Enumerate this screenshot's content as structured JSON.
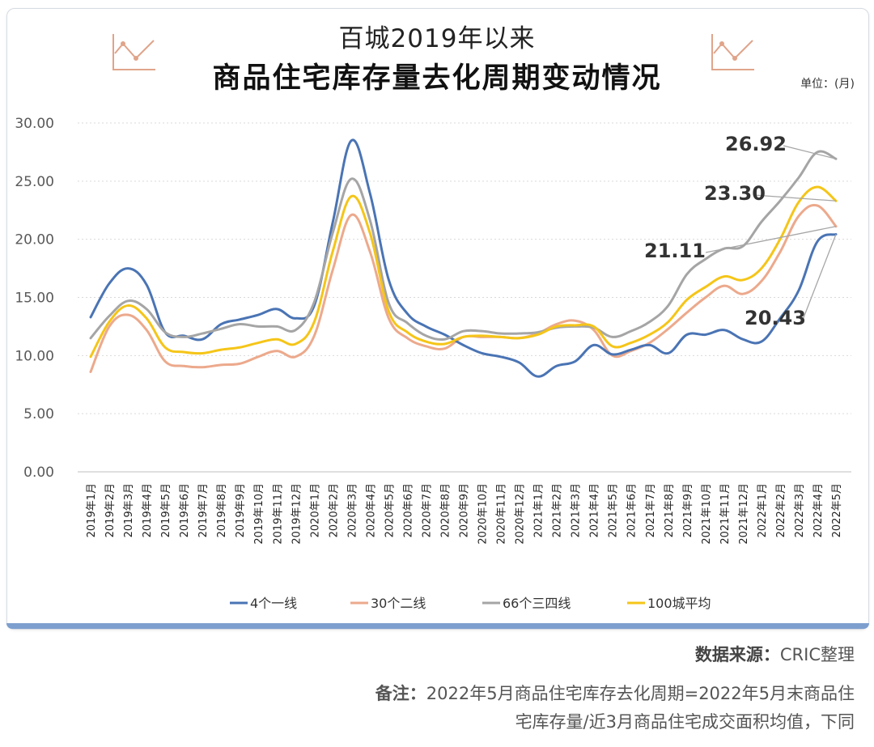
{
  "header": {
    "title_line1": "百城2019年以来",
    "title_line2": "商品住宅库存量去化周期变动情况",
    "unit": "单位：(月)"
  },
  "footer": {
    "source_label": "数据来源：",
    "source_text": "CRIC整理",
    "note_label": "备注：",
    "note_line1": "2022年5月商品住宅库存去化周期=2022年5月末商品住",
    "note_line2": "宅库存量/近3月商品住宅成交面积均值，下同"
  },
  "chart_data": {
    "type": "line",
    "title": "商品住宅库存量去化周期变动情况",
    "ylabel": "单位：(月)",
    "ylim": [
      0,
      30
    ],
    "yticks": [
      "0.00",
      "5.00",
      "10.00",
      "15.00",
      "20.00",
      "25.00",
      "30.00"
    ],
    "grid": true,
    "legend_position": "bottom",
    "categories": [
      "2019年1月",
      "2019年2月",
      "2019年3月",
      "2019年4月",
      "2019年5月",
      "2019年6月",
      "2019年7月",
      "2019年8月",
      "2019年9月",
      "2019年10月",
      "2019年11月",
      "2019年12月",
      "2020年1月",
      "2020年2月",
      "2020年3月",
      "2020年4月",
      "2020年5月",
      "2020年6月",
      "2020年7月",
      "2020年8月",
      "2020年9月",
      "2020年10月",
      "2020年11月",
      "2020年12月",
      "2021年1月",
      "2021年2月",
      "2021年3月",
      "2021年4月",
      "2021年5月",
      "2021年6月",
      "2021年7月",
      "2021年8月",
      "2021年9月",
      "2021年10月",
      "2021年11月",
      "2021年12月",
      "2022年1月",
      "2022年2月",
      "2022年3月",
      "2022年4月",
      "2022年5月"
    ],
    "series": [
      {
        "name": "4个一线",
        "color": "#4a74b4",
        "values": [
          13.3,
          16.2,
          17.5,
          16.1,
          12.0,
          11.7,
          11.4,
          12.7,
          13.1,
          13.5,
          14.0,
          13.2,
          14.3,
          21.5,
          28.5,
          23.9,
          16.5,
          13.6,
          12.5,
          11.8,
          10.9,
          10.2,
          9.9,
          9.4,
          8.2,
          9.1,
          9.5,
          10.9,
          10.1,
          10.5,
          10.9,
          10.2,
          11.8,
          11.8,
          12.2,
          11.4,
          11.2,
          13.2,
          15.6,
          19.8,
          20.43
        ]
      },
      {
        "name": "30个二线",
        "color": "#eca98c",
        "values": [
          8.6,
          12.5,
          13.5,
          12.2,
          9.5,
          9.1,
          9.0,
          9.2,
          9.3,
          9.9,
          10.4,
          9.9,
          11.7,
          17.4,
          22.1,
          18.9,
          13.2,
          11.5,
          10.8,
          10.6,
          11.6,
          11.6,
          11.6,
          11.5,
          11.9,
          12.7,
          13.0,
          12.2,
          10.0,
          10.4,
          11.1,
          12.3,
          13.7,
          15.0,
          16.0,
          15.3,
          16.4,
          18.9,
          22.0,
          22.9,
          21.11
        ]
      },
      {
        "name": "66个三四线",
        "color": "#a5a5a5",
        "values": [
          11.5,
          13.4,
          14.7,
          14.0,
          12.0,
          11.6,
          11.9,
          12.3,
          12.7,
          12.5,
          12.5,
          12.2,
          14.6,
          20.6,
          25.2,
          21.6,
          14.5,
          12.8,
          11.7,
          11.4,
          12.1,
          12.1,
          11.9,
          11.9,
          12.0,
          12.4,
          12.5,
          12.4,
          11.6,
          12.1,
          12.9,
          14.3,
          17.0,
          18.3,
          19.2,
          19.4,
          21.5,
          23.3,
          25.3,
          27.5,
          26.92
        ]
      },
      {
        "name": "100城平均",
        "color": "#f5c518",
        "values": [
          9.9,
          12.9,
          14.3,
          13.2,
          10.7,
          10.3,
          10.2,
          10.5,
          10.7,
          11.1,
          11.4,
          11.0,
          12.9,
          19.0,
          23.7,
          20.5,
          13.8,
          12.0,
          11.2,
          11.0,
          11.6,
          11.7,
          11.6,
          11.5,
          11.8,
          12.5,
          12.6,
          12.5,
          10.8,
          11.1,
          11.8,
          12.9,
          14.8,
          15.9,
          16.8,
          16.5,
          17.5,
          20.0,
          23.2,
          24.5,
          23.3
        ]
      }
    ],
    "annotations": [
      {
        "text": "26.92",
        "series": "66个三四线"
      },
      {
        "text": "23.30",
        "series": "100城平均"
      },
      {
        "text": "21.11",
        "series": "30个二线"
      },
      {
        "text": "20.43",
        "series": "4个一线"
      }
    ]
  }
}
